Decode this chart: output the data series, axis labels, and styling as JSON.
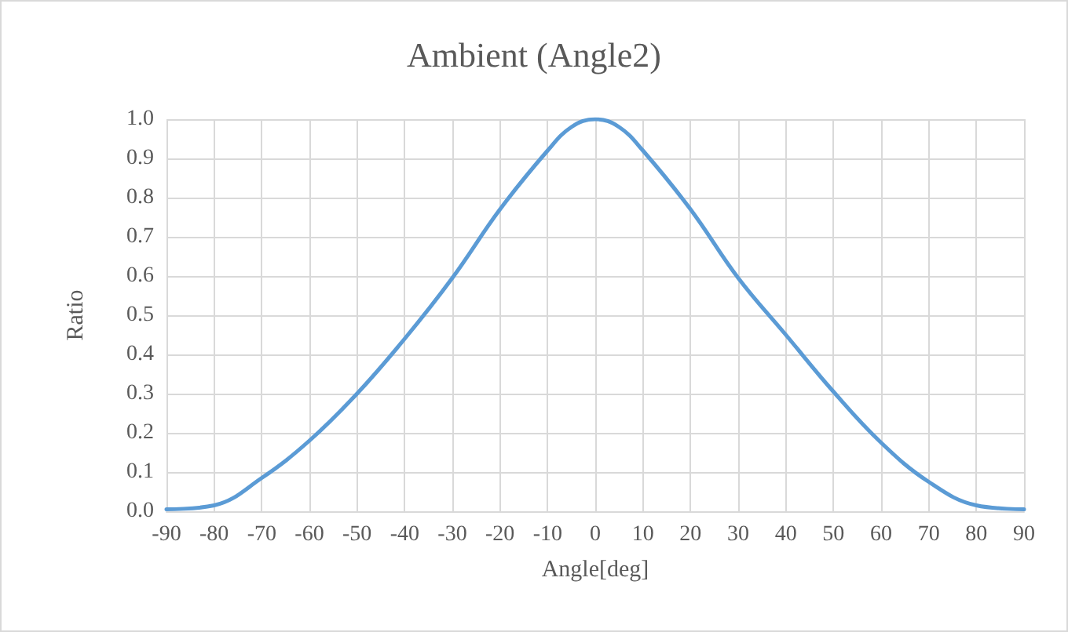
{
  "chart_data": {
    "type": "line",
    "title": "Ambient (Angle2)",
    "xlabel": "Angle[deg]",
    "ylabel": "Ratio",
    "x": [
      -90,
      -80,
      -70,
      -60,
      -50,
      -40,
      -30,
      -20,
      -10,
      -5,
      0,
      5,
      10,
      20,
      30,
      40,
      50,
      60,
      70,
      80,
      90
    ],
    "series": [
      {
        "color": "#5b9bd5",
        "values": [
          0.005,
          0.015,
          0.085,
          0.18,
          0.3,
          0.44,
          0.595,
          0.77,
          0.92,
          0.98,
          1.0,
          0.98,
          0.92,
          0.77,
          0.595,
          0.45,
          0.305,
          0.175,
          0.075,
          0.015,
          0.005
        ]
      }
    ],
    "xlim": [
      -90,
      90
    ],
    "xticks": [
      -90,
      -80,
      -70,
      -60,
      -50,
      -40,
      -30,
      -20,
      -10,
      0,
      10,
      20,
      30,
      40,
      50,
      60,
      70,
      80,
      90
    ],
    "ylim": [
      0,
      1
    ],
    "yticks": [
      {
        "value": 0,
        "label": "0.0"
      },
      0.1,
      0.2,
      0.3,
      0.4,
      0.5,
      0.6,
      0.7,
      0.8,
      0.9,
      {
        "value": 1,
        "label": "1.0"
      }
    ],
    "grid": true,
    "marker": "none",
    "line_style": "solid"
  }
}
